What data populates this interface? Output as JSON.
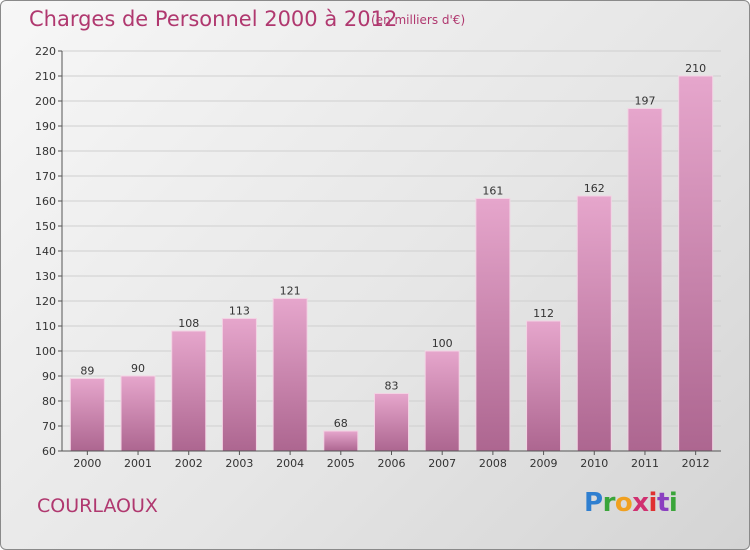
{
  "title": "Charges de Personnel 2000 à 2012",
  "subtitle": "(en milliers d'€)",
  "commune": "COURLAOUX",
  "logo": {
    "letters": [
      "P",
      "r",
      "o",
      "x",
      "i",
      "t",
      "i"
    ],
    "colors": [
      "#2f7fd0",
      "#3aa53a",
      "#f0a020",
      "#d03070",
      "#e03030",
      "#8a3fc0",
      "#3aa53a"
    ]
  },
  "colors": {
    "bar_top": "#e6a6cc",
    "bar_bottom": "#ad6690",
    "accent": "#b0386f",
    "grid": "#cfcfcf"
  },
  "chart_data": {
    "type": "bar",
    "title": "Charges de Personnel 2000 à 2012",
    "subtitle": "(en milliers d'€)",
    "categories": [
      "2000",
      "2001",
      "2002",
      "2003",
      "2004",
      "2005",
      "2006",
      "2007",
      "2008",
      "2009",
      "2010",
      "2011",
      "2012"
    ],
    "values": [
      89,
      90,
      108,
      113,
      121,
      68,
      83,
      100,
      161,
      112,
      162,
      197,
      210
    ],
    "ylim": [
      60,
      220
    ],
    "yticks": [
      60,
      70,
      80,
      90,
      100,
      110,
      120,
      130,
      140,
      150,
      160,
      170,
      180,
      190,
      200,
      210,
      220
    ],
    "grid": true,
    "legend": "none",
    "xlabel": "",
    "ylabel": ""
  }
}
